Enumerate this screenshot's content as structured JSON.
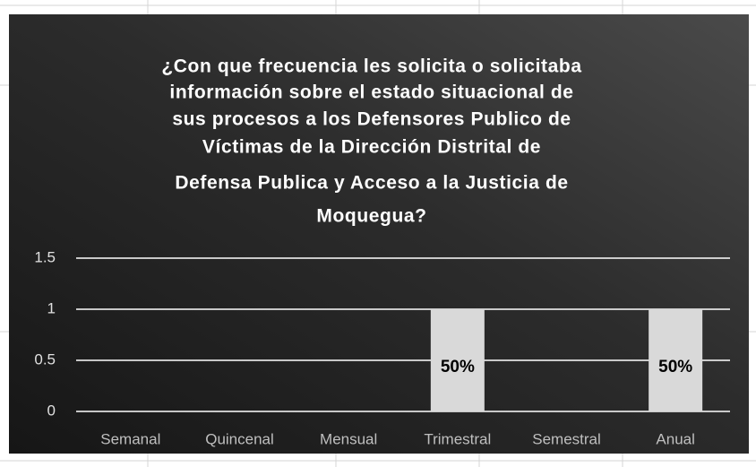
{
  "chart_data": {
    "type": "bar",
    "title": [
      "¿Con que frecuencia les solicita o solicitaba",
      "información sobre el estado situacional de",
      "sus procesos a los Defensores Publico de",
      "Víctimas de la Dirección Distrital de",
      "Defensa Publica  y Acceso  a la  Justicia de",
      "Moquegua?"
    ],
    "categories": [
      "Semanal",
      "Quincenal",
      "Mensual",
      "Trimestral",
      "Semestral",
      "Anual"
    ],
    "values": [
      0,
      0,
      0,
      1,
      0,
      1
    ],
    "percent_labels": [
      null,
      null,
      null,
      "50%",
      null,
      "50%"
    ],
    "color": "#d9d9d9",
    "ylim": [
      0,
      1.5
    ],
    "yticks": [
      0,
      0.5,
      1,
      1.5
    ],
    "grid": true
  }
}
